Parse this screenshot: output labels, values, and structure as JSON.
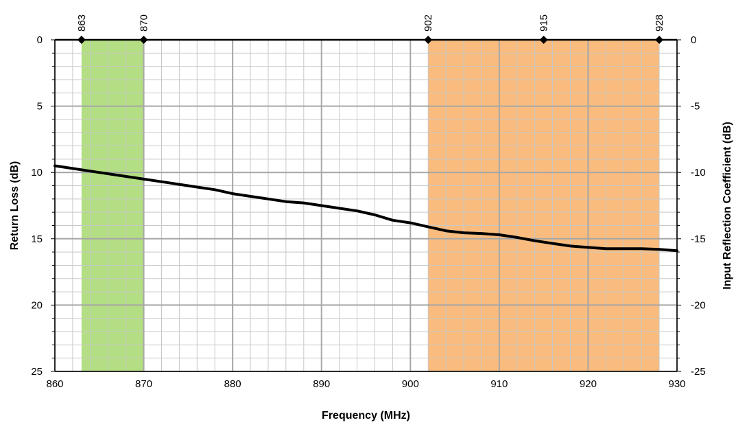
{
  "chart_data": {
    "type": "line",
    "xlabel": "Frequency (MHz)",
    "ylabel": "Return Loss (dB)",
    "y2label": "Input Reflection Coefficient (dB)",
    "xlim": [
      860,
      930
    ],
    "ylim": [
      0,
      25
    ],
    "y_inverted": true,
    "y2lim": [
      0,
      -25
    ],
    "x_ticks": [
      860,
      870,
      880,
      890,
      900,
      910,
      920,
      930
    ],
    "y_ticks": [
      0,
      5,
      10,
      15,
      20,
      25
    ],
    "y2_ticks": [
      0,
      -5,
      -10,
      -15,
      -20,
      -25
    ],
    "x_minor_step": 2,
    "y_minor_step": 1,
    "grid": true,
    "bands": [
      {
        "from": 863,
        "to": 870,
        "color": "#b3de83"
      },
      {
        "from": 902,
        "to": 928,
        "color": "#f9bc7e"
      }
    ],
    "top_markers": [
      863,
      870,
      902,
      915,
      928
    ],
    "series": [
      {
        "color": "#000000",
        "x": [
          860,
          862,
          864,
          866,
          868,
          870,
          872,
          874,
          876,
          878,
          880,
          882,
          884,
          886,
          888,
          890,
          892,
          894,
          896,
          898,
          900,
          902,
          904,
          906,
          908,
          910,
          912,
          914,
          916,
          918,
          920,
          922,
          924,
          926,
          928,
          930
        ],
        "y": [
          9.5,
          9.7,
          9.9,
          10.1,
          10.3,
          10.5,
          10.7,
          10.9,
          11.1,
          11.3,
          11.6,
          11.8,
          12.0,
          12.2,
          12.3,
          12.5,
          12.7,
          12.9,
          13.2,
          13.6,
          13.8,
          14.1,
          14.4,
          14.55,
          14.6,
          14.7,
          14.9,
          15.15,
          15.35,
          15.55,
          15.65,
          15.75,
          15.75,
          15.75,
          15.8,
          15.9
        ]
      }
    ]
  }
}
